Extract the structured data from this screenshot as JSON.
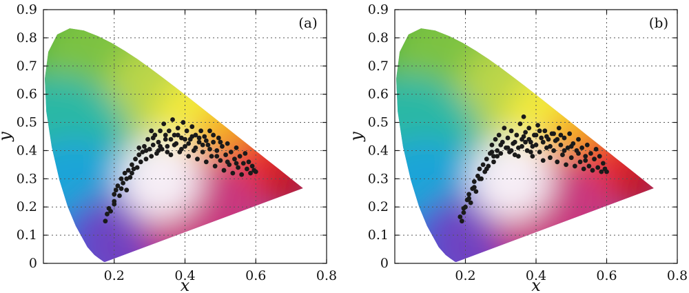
{
  "chart_data": [
    {
      "type": "scatter",
      "panel_label": "(a)",
      "xlabel": "x",
      "ylabel": "y",
      "xlim": [
        0,
        0.8
      ],
      "ylim": [
        0,
        0.9
      ],
      "x_ticks": [
        "0.2",
        "0.4",
        "0.6",
        "0.8"
      ],
      "y_ticks": [
        "0",
        "0.1",
        "0.2",
        "0.3",
        "0.4",
        "0.5",
        "0.6",
        "0.7",
        "0.8",
        "0.9"
      ],
      "grid": true,
      "background": "CIE 1931 chromaticity diagram",
      "marker_color": "#1a1a1a",
      "points": [
        [
          0.175,
          0.15
        ],
        [
          0.18,
          0.175
        ],
        [
          0.185,
          0.195
        ],
        [
          0.19,
          0.185
        ],
        [
          0.2,
          0.22
        ],
        [
          0.2,
          0.245
        ],
        [
          0.205,
          0.26
        ],
        [
          0.21,
          0.275
        ],
        [
          0.215,
          0.24
        ],
        [
          0.22,
          0.3
        ],
        [
          0.225,
          0.285
        ],
        [
          0.23,
          0.32
        ],
        [
          0.235,
          0.26
        ],
        [
          0.24,
          0.33
        ],
        [
          0.245,
          0.305
        ],
        [
          0.25,
          0.35
        ],
        [
          0.255,
          0.335
        ],
        [
          0.26,
          0.37
        ],
        [
          0.265,
          0.34
        ],
        [
          0.27,
          0.385
        ],
        [
          0.275,
          0.36
        ],
        [
          0.28,
          0.395
        ],
        [
          0.285,
          0.415
        ],
        [
          0.29,
          0.37
        ],
        [
          0.295,
          0.44
        ],
        [
          0.3,
          0.405
        ],
        [
          0.305,
          0.47
        ],
        [
          0.31,
          0.42
        ],
        [
          0.315,
          0.455
        ],
        [
          0.32,
          0.39
        ],
        [
          0.325,
          0.43
        ],
        [
          0.33,
          0.47
        ],
        [
          0.335,
          0.405
        ],
        [
          0.34,
          0.495
        ],
        [
          0.345,
          0.44
        ],
        [
          0.35,
          0.415
        ],
        [
          0.355,
          0.47
        ],
        [
          0.36,
          0.385
        ],
        [
          0.365,
          0.51
        ],
        [
          0.37,
          0.455
        ],
        [
          0.375,
          0.425
        ],
        [
          0.38,
          0.48
        ],
        [
          0.385,
          0.395
        ],
        [
          0.39,
          0.445
        ],
        [
          0.395,
          0.5
        ],
        [
          0.4,
          0.415
        ],
        [
          0.405,
          0.47
        ],
        [
          0.41,
          0.38
        ],
        [
          0.415,
          0.44
        ],
        [
          0.42,
          0.485
        ],
        [
          0.425,
          0.4
        ],
        [
          0.43,
          0.455
        ],
        [
          0.435,
          0.37
        ],
        [
          0.44,
          0.43
        ],
        [
          0.445,
          0.47
        ],
        [
          0.45,
          0.395
        ],
        [
          0.455,
          0.45
        ],
        [
          0.46,
          0.36
        ],
        [
          0.465,
          0.42
        ],
        [
          0.47,
          0.47
        ],
        [
          0.475,
          0.38
        ],
        [
          0.48,
          0.43
        ],
        [
          0.485,
          0.345
        ],
        [
          0.49,
          0.4
        ],
        [
          0.495,
          0.445
        ],
        [
          0.5,
          0.365
        ],
        [
          0.505,
          0.415
        ],
        [
          0.51,
          0.33
        ],
        [
          0.515,
          0.385
        ],
        [
          0.52,
          0.425
        ],
        [
          0.525,
          0.35
        ],
        [
          0.53,
          0.395
        ],
        [
          0.535,
          0.32
        ],
        [
          0.54,
          0.37
        ],
        [
          0.545,
          0.41
        ],
        [
          0.55,
          0.34
        ],
        [
          0.555,
          0.38
        ],
        [
          0.56,
          0.315
        ],
        [
          0.565,
          0.355
        ],
        [
          0.57,
          0.39
        ],
        [
          0.575,
          0.335
        ],
        [
          0.58,
          0.36
        ],
        [
          0.585,
          0.32
        ],
        [
          0.59,
          0.345
        ],
        [
          0.595,
          0.33
        ],
        [
          0.6,
          0.325
        ],
        [
          0.31,
          0.445
        ],
        [
          0.33,
          0.415
        ],
        [
          0.35,
          0.395
        ],
        [
          0.37,
          0.42
        ],
        [
          0.39,
          0.405
        ],
        [
          0.41,
          0.425
        ],
        [
          0.43,
          0.41
        ],
        [
          0.45,
          0.42
        ],
        [
          0.47,
          0.405
        ],
        [
          0.49,
          0.38
        ],
        [
          0.52,
          0.36
        ],
        [
          0.545,
          0.355
        ],
        [
          0.29,
          0.4
        ],
        [
          0.27,
          0.41
        ],
        [
          0.25,
          0.32
        ],
        [
          0.235,
          0.3
        ],
        [
          0.22,
          0.265
        ],
        [
          0.2,
          0.21
        ],
        [
          0.42,
          0.45
        ],
        [
          0.44,
          0.445
        ],
        [
          0.46,
          0.435
        ],
        [
          0.48,
          0.455
        ],
        [
          0.5,
          0.43
        ],
        [
          0.36,
          0.44
        ],
        [
          0.38,
          0.455
        ],
        [
          0.4,
          0.44
        ],
        [
          0.345,
          0.455
        ],
        [
          0.325,
          0.4
        ],
        [
          0.305,
          0.38
        ]
      ]
    },
    {
      "type": "scatter",
      "panel_label": "(b)",
      "xlabel": "x",
      "ylabel": "y",
      "xlim": [
        0,
        0.8
      ],
      "ylim": [
        0,
        0.9
      ],
      "x_ticks": [
        "0.2",
        "0.4",
        "0.6",
        "0.8"
      ],
      "y_ticks": [
        "0",
        "0.1",
        "0.2",
        "0.3",
        "0.4",
        "0.5",
        "0.6",
        "0.7",
        "0.8",
        "0.9"
      ],
      "grid": true,
      "background": "CIE 1931 chromaticity diagram",
      "marker_color": "#1a1a1a",
      "points": [
        [
          0.185,
          0.165
        ],
        [
          0.19,
          0.15
        ],
        [
          0.195,
          0.18
        ],
        [
          0.2,
          0.2
        ],
        [
          0.205,
          0.225
        ],
        [
          0.21,
          0.245
        ],
        [
          0.215,
          0.215
        ],
        [
          0.22,
          0.265
        ],
        [
          0.225,
          0.29
        ],
        [
          0.23,
          0.255
        ],
        [
          0.235,
          0.31
        ],
        [
          0.24,
          0.335
        ],
        [
          0.245,
          0.3
        ],
        [
          0.25,
          0.35
        ],
        [
          0.255,
          0.325
        ],
        [
          0.26,
          0.37
        ],
        [
          0.265,
          0.345
        ],
        [
          0.27,
          0.39
        ],
        [
          0.275,
          0.42
        ],
        [
          0.28,
          0.38
        ],
        [
          0.285,
          0.44
        ],
        [
          0.29,
          0.4
        ],
        [
          0.295,
          0.455
        ],
        [
          0.3,
          0.39
        ],
        [
          0.305,
          0.43
        ],
        [
          0.31,
          0.48
        ],
        [
          0.315,
          0.41
        ],
        [
          0.32,
          0.445
        ],
        [
          0.325,
          0.395
        ],
        [
          0.33,
          0.47
        ],
        [
          0.335,
          0.425
        ],
        [
          0.34,
          0.385
        ],
        [
          0.345,
          0.455
        ],
        [
          0.35,
          0.41
        ],
        [
          0.355,
          0.495
        ],
        [
          0.36,
          0.44
        ],
        [
          0.365,
          0.52
        ],
        [
          0.37,
          0.465
        ],
        [
          0.375,
          0.4
        ],
        [
          0.38,
          0.48
        ],
        [
          0.385,
          0.43
        ],
        [
          0.39,
          0.38
        ],
        [
          0.395,
          0.455
        ],
        [
          0.4,
          0.42
        ],
        [
          0.405,
          0.49
        ],
        [
          0.41,
          0.395
        ],
        [
          0.415,
          0.445
        ],
        [
          0.42,
          0.365
        ],
        [
          0.425,
          0.47
        ],
        [
          0.43,
          0.41
        ],
        [
          0.435,
          0.44
        ],
        [
          0.44,
          0.375
        ],
        [
          0.445,
          0.46
        ],
        [
          0.45,
          0.4
        ],
        [
          0.455,
          0.435
        ],
        [
          0.46,
          0.36
        ],
        [
          0.465,
          0.48
        ],
        [
          0.47,
          0.42
        ],
        [
          0.475,
          0.385
        ],
        [
          0.48,
          0.445
        ],
        [
          0.485,
          0.35
        ],
        [
          0.49,
          0.41
        ],
        [
          0.495,
          0.46
        ],
        [
          0.5,
          0.375
        ],
        [
          0.505,
          0.425
        ],
        [
          0.51,
          0.345
        ],
        [
          0.515,
          0.4
        ],
        [
          0.52,
          0.44
        ],
        [
          0.525,
          0.36
        ],
        [
          0.53,
          0.41
        ],
        [
          0.535,
          0.335
        ],
        [
          0.54,
          0.38
        ],
        [
          0.545,
          0.42
        ],
        [
          0.55,
          0.345
        ],
        [
          0.555,
          0.39
        ],
        [
          0.56,
          0.33
        ],
        [
          0.565,
          0.37
        ],
        [
          0.57,
          0.405
        ],
        [
          0.575,
          0.34
        ],
        [
          0.58,
          0.38
        ],
        [
          0.585,
          0.325
        ],
        [
          0.59,
          0.355
        ],
        [
          0.595,
          0.335
        ],
        [
          0.6,
          0.325
        ],
        [
          0.32,
          0.41
        ],
        [
          0.34,
          0.43
        ],
        [
          0.36,
          0.415
        ],
        [
          0.38,
          0.44
        ],
        [
          0.4,
          0.455
        ],
        [
          0.42,
          0.43
        ],
        [
          0.44,
          0.415
        ],
        [
          0.46,
          0.44
        ],
        [
          0.48,
          0.4
        ],
        [
          0.5,
          0.415
        ],
        [
          0.52,
          0.39
        ],
        [
          0.54,
          0.365
        ],
        [
          0.28,
          0.36
        ],
        [
          0.26,
          0.335
        ],
        [
          0.24,
          0.3
        ],
        [
          0.225,
          0.27
        ],
        [
          0.21,
          0.23
        ],
        [
          0.195,
          0.195
        ],
        [
          0.37,
          0.43
        ],
        [
          0.39,
          0.415
        ],
        [
          0.41,
          0.47
        ],
        [
          0.43,
          0.45
        ],
        [
          0.45,
          0.46
        ],
        [
          0.47,
          0.455
        ],
        [
          0.35,
          0.38
        ],
        [
          0.33,
          0.4
        ],
        [
          0.3,
          0.42
        ],
        [
          0.29,
          0.38
        ],
        [
          0.275,
          0.395
        ],
        [
          0.365,
          0.45
        ],
        [
          0.385,
          0.395
        ]
      ]
    }
  ]
}
